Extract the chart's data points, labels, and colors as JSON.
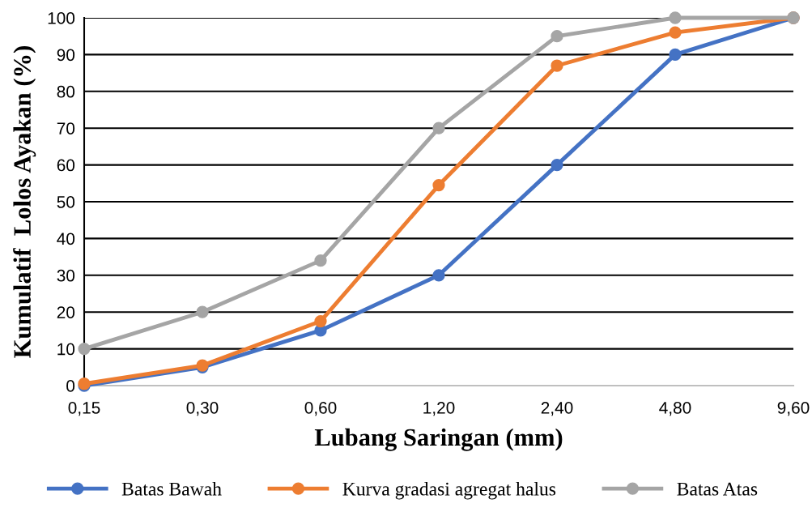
{
  "chart_data": {
    "type": "line",
    "xlabel": "Lubang Saringan (mm)",
    "ylabel": "Kumulatif  Lolos Ayakan (%)",
    "categories": [
      "0,15",
      "0,30",
      "0,60",
      "1,20",
      "2,40",
      "4,80",
      "9,60"
    ],
    "series": [
      {
        "name": "Batas Bawah",
        "color": "#4472c4",
        "values": [
          0,
          5,
          15,
          30,
          60,
          90,
          100
        ]
      },
      {
        "name": "Kurva gradasi agregat halus",
        "color": "#ed7d31",
        "values": [
          0.5,
          5.5,
          17.5,
          54.5,
          87,
          96,
          100
        ]
      },
      {
        "name": "Batas Atas",
        "color": "#a5a5a5",
        "values": [
          10,
          20,
          34,
          70,
          95,
          100,
          100
        ]
      }
    ],
    "ylim": [
      0,
      100
    ],
    "yticks": [
      0,
      10,
      20,
      30,
      40,
      50,
      60,
      70,
      80,
      90,
      100
    ],
    "grid": "y",
    "legend": "bottom",
    "marker": "circle",
    "line_style": "solid"
  }
}
